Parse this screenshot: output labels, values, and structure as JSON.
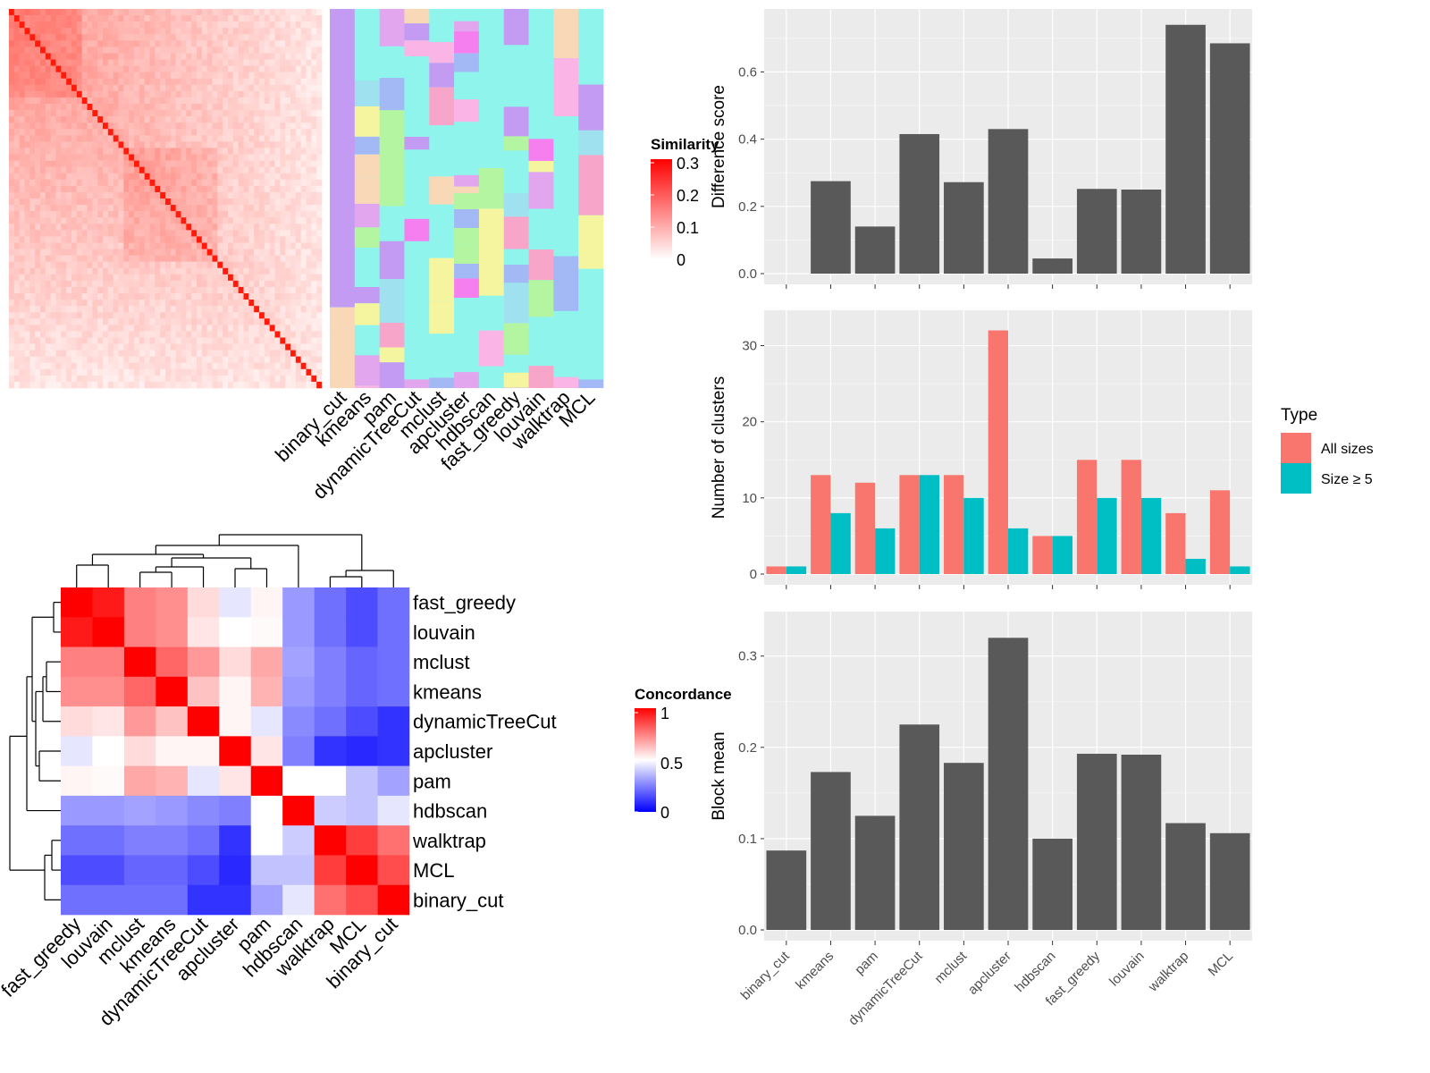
{
  "methods": [
    "binary_cut",
    "kmeans",
    "pam",
    "dynamicTreeCut",
    "mclust",
    "apcluster",
    "hdbscan",
    "fast_greedy",
    "louvain",
    "walktrap",
    "MCL"
  ],
  "similarity_legend": {
    "title": "Similarity",
    "ticks": [
      "0",
      "0.1",
      "0.2",
      "0.3"
    ],
    "colors": [
      "#ffffff",
      "#ff0000"
    ]
  },
  "concordance_legend": {
    "title": "Concordance",
    "ticks": [
      "0",
      "0.5",
      "1"
    ],
    "colors": [
      "#0000ff",
      "#ffffff",
      "#ff0000"
    ]
  },
  "concordance_heatmap": {
    "row_order": [
      "fast_greedy",
      "louvain",
      "mclust",
      "kmeans",
      "dynamicTreeCut",
      "apcluster",
      "pam",
      "hdbscan",
      "walktrap",
      "MCL",
      "binary_cut"
    ],
    "col_order": [
      "fast_greedy",
      "louvain",
      "mclust",
      "kmeans",
      "dynamicTreeCut",
      "apcluster",
      "pam",
      "hdbscan",
      "walktrap",
      "MCL",
      "binary_cut"
    ],
    "values": [
      [
        1.0,
        0.95,
        0.75,
        0.72,
        0.57,
        0.45,
        0.52,
        0.3,
        0.22,
        0.15,
        0.22
      ],
      [
        0.95,
        1.0,
        0.75,
        0.72,
        0.55,
        0.5,
        0.51,
        0.3,
        0.22,
        0.15,
        0.22
      ],
      [
        0.75,
        0.75,
        1.0,
        0.8,
        0.7,
        0.57,
        0.67,
        0.32,
        0.25,
        0.2,
        0.22
      ],
      [
        0.72,
        0.72,
        0.8,
        1.0,
        0.62,
        0.52,
        0.65,
        0.3,
        0.25,
        0.2,
        0.22
      ],
      [
        0.57,
        0.55,
        0.7,
        0.62,
        1.0,
        0.52,
        0.45,
        0.27,
        0.22,
        0.15,
        0.1
      ],
      [
        0.45,
        0.5,
        0.57,
        0.52,
        0.52,
        1.0,
        0.55,
        0.25,
        0.1,
        0.08,
        0.1
      ],
      [
        0.52,
        0.51,
        0.67,
        0.65,
        0.45,
        0.55,
        1.0,
        0.5,
        0.5,
        0.38,
        0.32
      ],
      [
        0.3,
        0.3,
        0.32,
        0.3,
        0.27,
        0.25,
        0.5,
        1.0,
        0.4,
        0.38,
        0.45
      ],
      [
        0.22,
        0.22,
        0.25,
        0.25,
        0.22,
        0.1,
        0.5,
        0.4,
        1.0,
        0.88,
        0.78
      ],
      [
        0.15,
        0.15,
        0.2,
        0.2,
        0.15,
        0.08,
        0.38,
        0.38,
        0.88,
        1.0,
        0.85
      ],
      [
        0.22,
        0.22,
        0.22,
        0.22,
        0.1,
        0.1,
        0.32,
        0.45,
        0.78,
        0.85,
        1.0
      ]
    ]
  },
  "chart_data": [
    {
      "type": "bar",
      "categories": [
        "binary_cut",
        "kmeans",
        "pam",
        "dynamicTreeCut",
        "mclust",
        "apcluster",
        "hdbscan",
        "fast_greedy",
        "louvain",
        "walktrap",
        "MCL"
      ],
      "values": [
        0.0,
        0.275,
        0.14,
        0.415,
        0.272,
        0.43,
        0.045,
        0.252,
        0.25,
        0.74,
        0.685
      ],
      "ylabel": "Difference score",
      "ylim": [
        0,
        0.75
      ],
      "yticks": [
        "0.0",
        "0.2",
        "0.4",
        "0.6"
      ],
      "bar_color": "#595959"
    },
    {
      "type": "bar",
      "categories": [
        "binary_cut",
        "kmeans",
        "pam",
        "dynamicTreeCut",
        "mclust",
        "apcluster",
        "hdbscan",
        "fast_greedy",
        "louvain",
        "walktrap",
        "MCL"
      ],
      "series": [
        {
          "name": "All sizes",
          "color": "#f8766d",
          "values": [
            1,
            13,
            12,
            13,
            13,
            32,
            5,
            15,
            15,
            8,
            11
          ]
        },
        {
          "name": "Size ≥ 5",
          "color": "#00bfc4",
          "values": [
            1,
            8,
            6,
            13,
            10,
            6,
            5,
            10,
            10,
            2,
            1
          ]
        }
      ],
      "ylabel": "Number of clusters",
      "ylim": [
        0,
        33
      ],
      "yticks": [
        "0",
        "10",
        "20",
        "30"
      ],
      "legend_title": "Type",
      "legend_position": "right"
    },
    {
      "type": "bar",
      "categories": [
        "binary_cut",
        "kmeans",
        "pam",
        "dynamicTreeCut",
        "mclust",
        "apcluster",
        "hdbscan",
        "fast_greedy",
        "louvain",
        "walktrap",
        "MCL"
      ],
      "values": [
        0.087,
        0.173,
        0.125,
        0.225,
        0.183,
        0.32,
        0.1,
        0.193,
        0.192,
        0.117,
        0.106
      ],
      "ylabel": "Block mean",
      "ylim": [
        0,
        0.335
      ],
      "yticks": [
        "0.0",
        "0.1",
        "0.2",
        "0.3"
      ],
      "bar_color": "#595959"
    }
  ]
}
